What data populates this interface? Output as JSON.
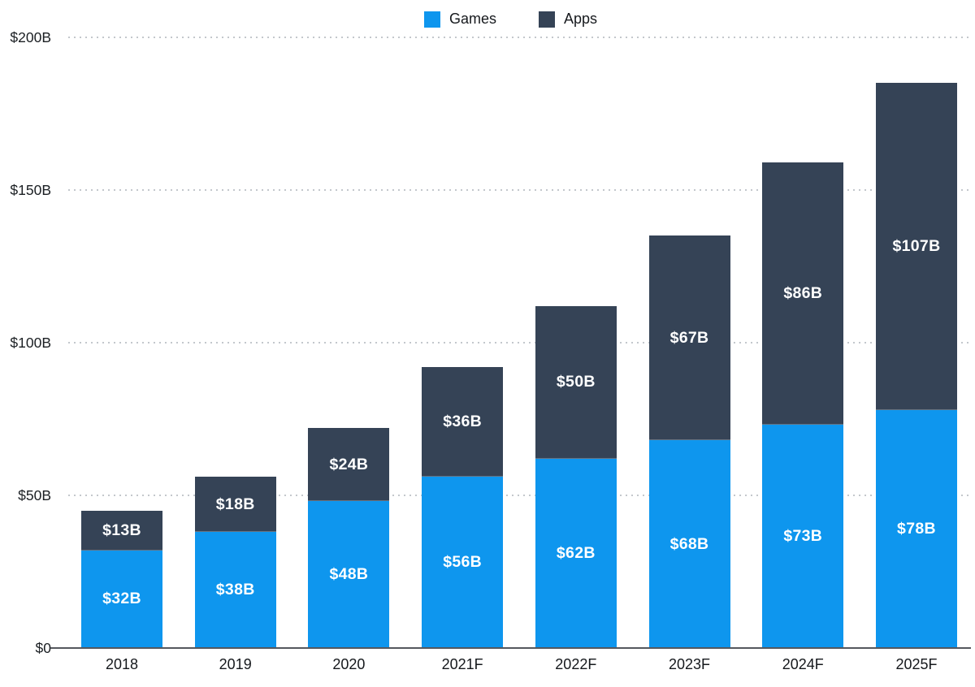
{
  "chart_data": {
    "type": "bar",
    "stacked": true,
    "categories": [
      "2018",
      "2019",
      "2020",
      "2021F",
      "2022F",
      "2023F",
      "2024F",
      "2025F"
    ],
    "series": [
      {
        "name": "Games",
        "color": "#0e96ee",
        "values": [
          32,
          38,
          48,
          56,
          62,
          68,
          73,
          78
        ],
        "labels": [
          "$32B",
          "$38B",
          "$48B",
          "$56B",
          "$62B",
          "$68B",
          "$73B",
          "$78B"
        ]
      },
      {
        "name": "Apps",
        "color": "#354356",
        "values": [
          13,
          18,
          24,
          36,
          50,
          67,
          86,
          107
        ],
        "labels": [
          "$13B",
          "$18B",
          "$24B",
          "$36B",
          "$50B",
          "$67B",
          "$86B",
          "$107B"
        ]
      }
    ],
    "totals": [
      45,
      56,
      72,
      92,
      112,
      135,
      159,
      185
    ],
    "y_axis": {
      "min": 0,
      "max": 200,
      "ticks": [
        {
          "label": "$200B",
          "value": 200
        },
        {
          "label": "$150B",
          "value": 150
        },
        {
          "label": "$100B",
          "value": 100
        },
        {
          "label": "$50B",
          "value": 50
        },
        {
          "label": "$0",
          "value": 0
        }
      ]
    },
    "title": "",
    "xlabel": "",
    "ylabel": "",
    "legend_position": "top-center",
    "grid": "dotted-horizontal"
  },
  "colors": {
    "games": "#0e96ee",
    "apps": "#354356",
    "grid_dots": "#c3c7cc",
    "axis_line": "#55585e",
    "tick_text": "#1b1f23",
    "bar_label_text": "#ffffff"
  }
}
